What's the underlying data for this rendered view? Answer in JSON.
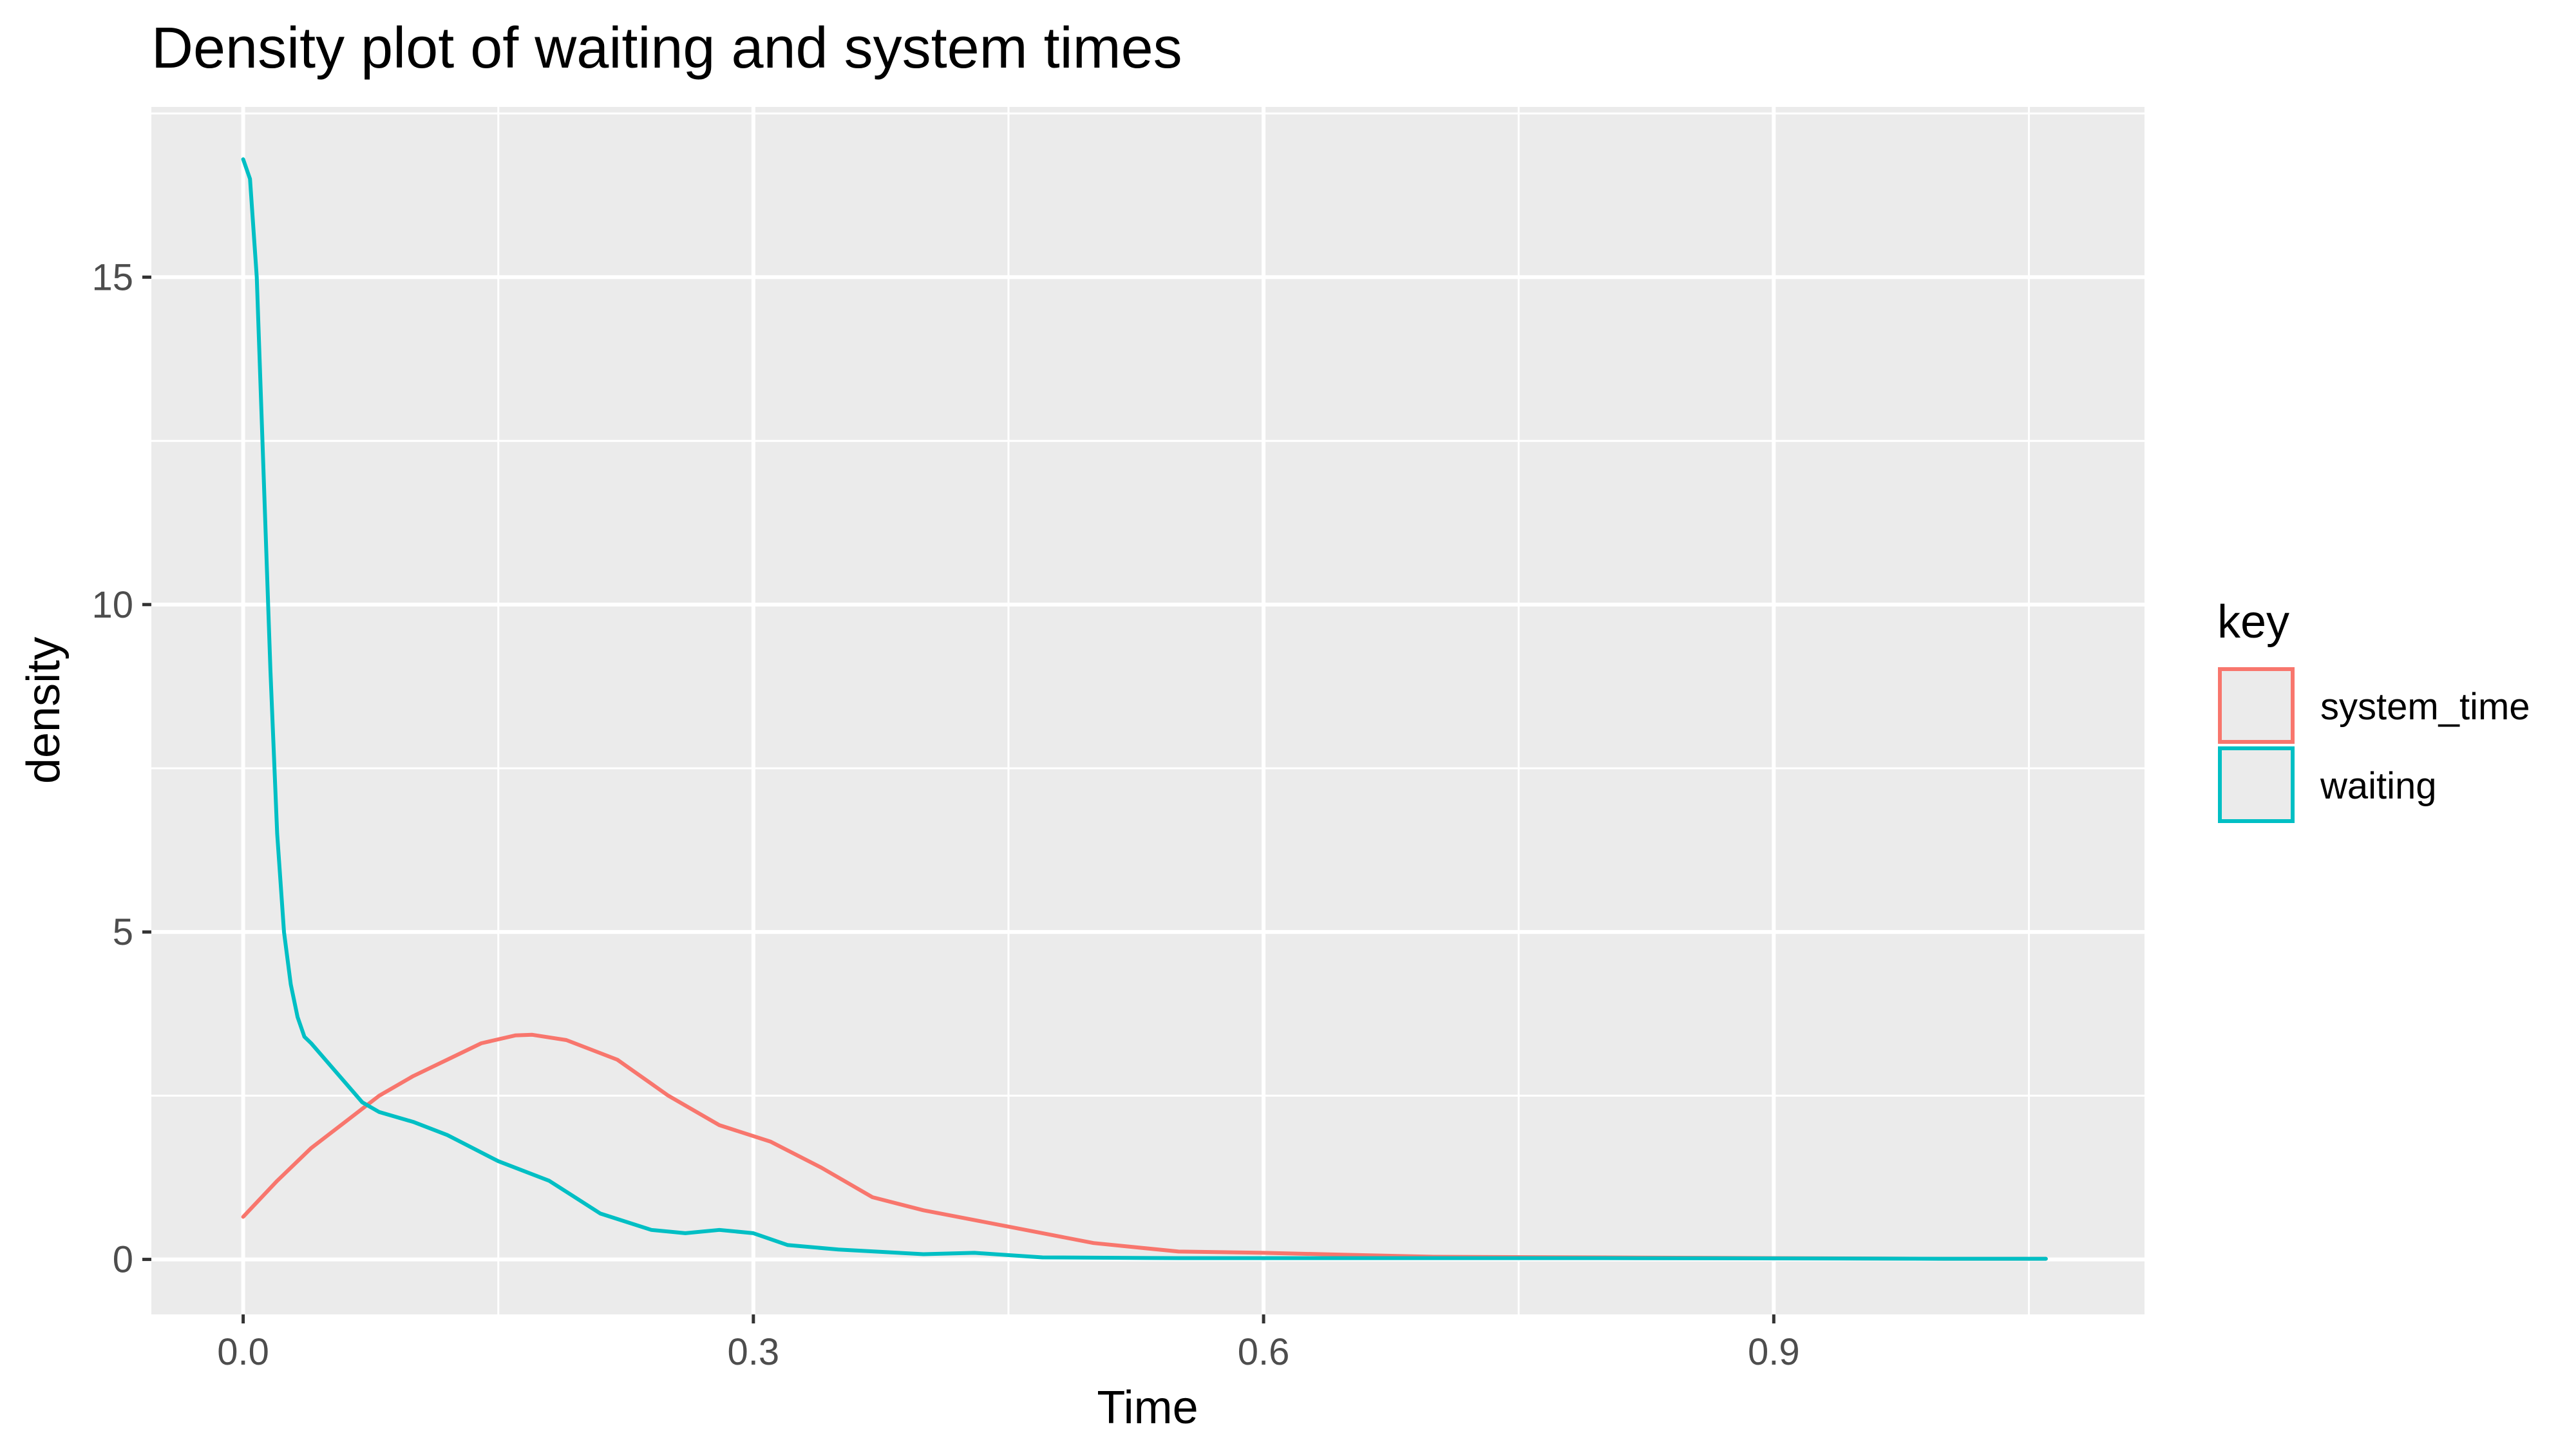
{
  "chart_data": {
    "type": "line",
    "title": "Density plot of waiting and system times",
    "xlabel": "Time",
    "ylabel": "density",
    "xlim": [
      -0.054,
      1.118
    ],
    "ylim": [
      -0.84,
      17.6
    ],
    "x_ticks": [
      0.0,
      0.3,
      0.6,
      0.9
    ],
    "x_tick_labels": [
      "0.0",
      "0.3",
      "0.6",
      "0.9"
    ],
    "y_ticks": [
      0,
      5,
      10,
      15
    ],
    "y_tick_labels": [
      "0",
      "5",
      "10",
      "15"
    ],
    "grid": true,
    "legend": {
      "title": "key",
      "position": "right",
      "items": [
        {
          "name": "system_time",
          "color": "#F8766D"
        },
        {
          "name": "waiting",
          "color": "#00BFC4"
        }
      ]
    },
    "series": [
      {
        "name": "system_time",
        "color": "#F8766D",
        "x": [
          0.0,
          0.02,
          0.04,
          0.06,
          0.08,
          0.1,
          0.12,
          0.14,
          0.16,
          0.17,
          0.19,
          0.22,
          0.25,
          0.28,
          0.31,
          0.34,
          0.37,
          0.4,
          0.45,
          0.5,
          0.55,
          0.6,
          0.65,
          0.7,
          0.8,
          0.9,
          1.0,
          1.06
        ],
        "values": [
          0.65,
          1.2,
          1.7,
          2.1,
          2.5,
          2.8,
          3.05,
          3.3,
          3.42,
          3.43,
          3.35,
          3.05,
          2.5,
          2.05,
          1.8,
          1.4,
          0.95,
          0.75,
          0.5,
          0.25,
          0.12,
          0.1,
          0.07,
          0.04,
          0.03,
          0.02,
          0.01,
          0.01
        ]
      },
      {
        "name": "waiting",
        "color": "#00BFC4",
        "x": [
          0.0,
          0.004,
          0.008,
          0.012,
          0.016,
          0.02,
          0.024,
          0.028,
          0.032,
          0.036,
          0.04,
          0.05,
          0.06,
          0.07,
          0.08,
          0.1,
          0.12,
          0.15,
          0.18,
          0.21,
          0.24,
          0.26,
          0.28,
          0.3,
          0.32,
          0.35,
          0.4,
          0.43,
          0.47,
          0.55,
          0.65,
          0.8,
          1.0,
          1.06
        ],
        "values": [
          16.8,
          16.5,
          15.0,
          12.0,
          9.0,
          6.5,
          5.0,
          4.2,
          3.7,
          3.4,
          3.3,
          3.0,
          2.7,
          2.4,
          2.25,
          2.1,
          1.9,
          1.5,
          1.2,
          0.7,
          0.45,
          0.4,
          0.45,
          0.4,
          0.22,
          0.15,
          0.08,
          0.1,
          0.03,
          0.02,
          0.02,
          0.02,
          0.01,
          0.01
        ]
      }
    ]
  }
}
